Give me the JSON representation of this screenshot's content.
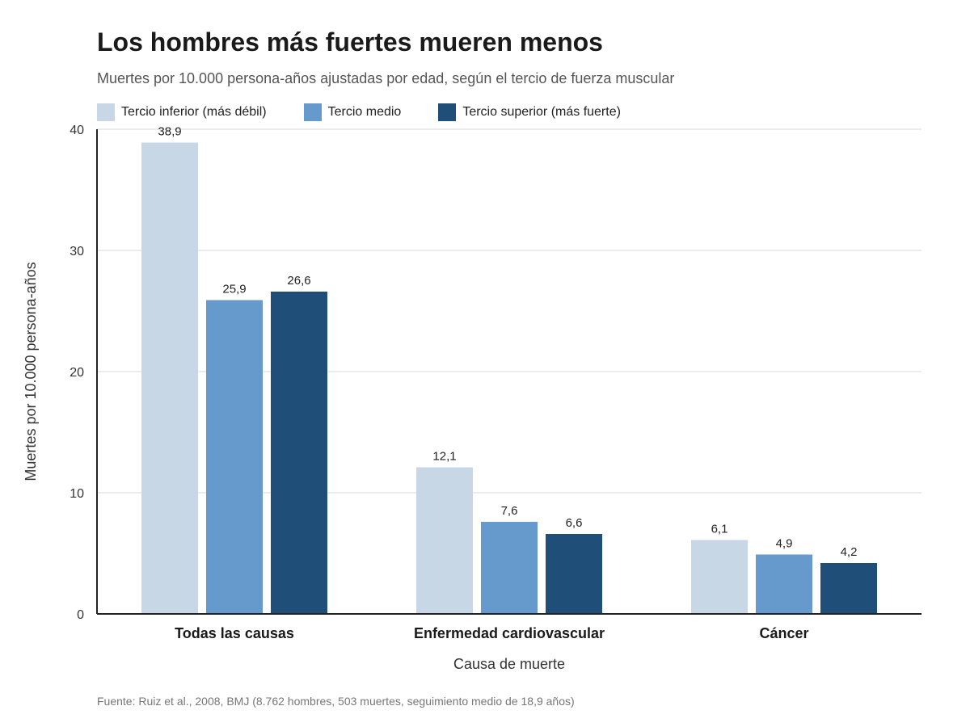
{
  "title": "Los hombres más fuertes mueren menos",
  "subtitle": "Muertes por 10.000 persona-años ajustadas por edad, según el tercio de fuerza muscular",
  "source": "Fuente: Ruiz et al., 2008, BMJ (8.762 hombres, 503 muertes, seguimiento medio de 18,9 años)",
  "colors": {
    "inferior": "#c8d7e6",
    "medio": "#6699cc",
    "superior": "#1f4e79",
    "grid": "#e6e6e6",
    "axis": "#222222"
  },
  "chart_data": {
    "type": "bar",
    "title": "Los hombres más fuertes mueren menos",
    "xlabel": "Causa de muerte",
    "ylabel": "Muertes por 10.000 persona-años",
    "ylim": [
      0,
      40
    ],
    "yticks": [
      "0",
      "10",
      "20",
      "30",
      "40"
    ],
    "grid": true,
    "legend_position": "top-left",
    "categories": [
      "Todas las causas",
      "Enfermedad cardiovascular",
      "Cáncer"
    ],
    "series": [
      {
        "name": "Tercio inferior (más débil)",
        "values": [
          38.9,
          12.1,
          6.1
        ],
        "labels": [
          "38,9",
          "12,1",
          "6,1"
        ]
      },
      {
        "name": "Tercio medio",
        "values": [
          25.9,
          7.6,
          4.9
        ],
        "labels": [
          "25,9",
          "7,6",
          "4,9"
        ]
      },
      {
        "name": "Tercio superior (más fuerte)",
        "values": [
          26.6,
          6.6,
          4.2
        ],
        "labels": [
          "26,6",
          "6,6",
          "4,2"
        ]
      }
    ]
  }
}
